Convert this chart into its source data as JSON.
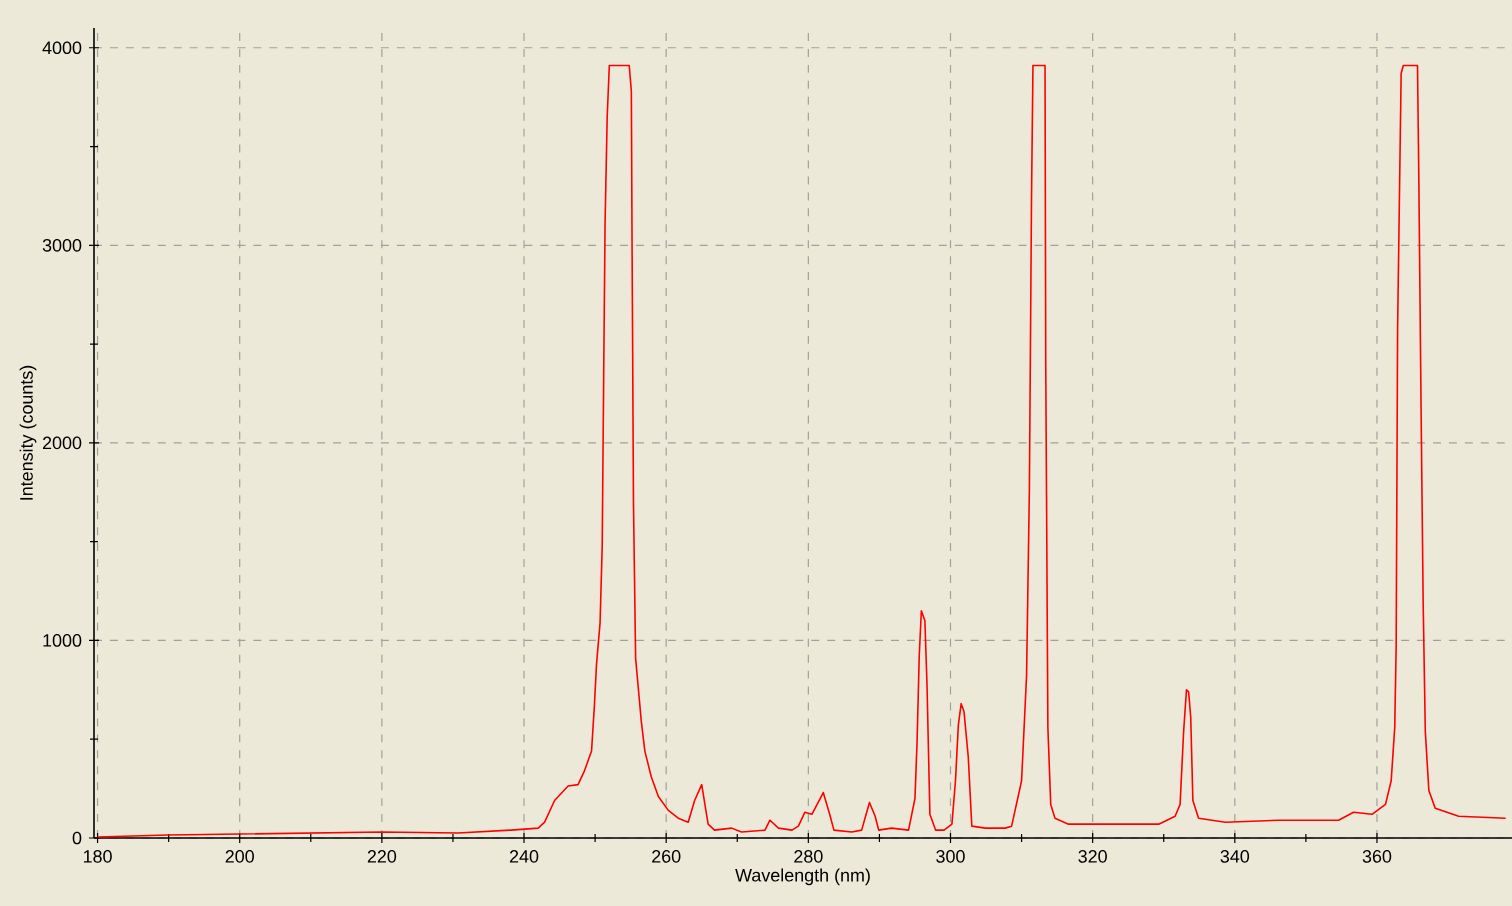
{
  "chart_data": {
    "type": "line",
    "xlabel": "Wavelength (nm)",
    "ylabel": "Intensity (counts)",
    "x": [
      180,
      190,
      200,
      220,
      230.7,
      238.2,
      242.0,
      242.9,
      244.3,
      246.2,
      247.6,
      248.5,
      249.5,
      249.9,
      250.2,
      250.7,
      251.0,
      251.2,
      251.4,
      251.7,
      252.0,
      254.8,
      255.1,
      255.2,
      255.4,
      255.7,
      256.2,
      256.5,
      257.0,
      257.9,
      258.9,
      260.3,
      261.7,
      263.1,
      264.0,
      265.0,
      265.9,
      266.8,
      269.2,
      270.6,
      273.9,
      274.6,
      275.8,
      277.7,
      278.6,
      279.5,
      280.5,
      282.1,
      283.0,
      283.6,
      286.1,
      287.5,
      288.6,
      289.4,
      289.9,
      291.7,
      294.1,
      295.0,
      295.3,
      295.6,
      295.9,
      296.4,
      296.7,
      297.1,
      297.9,
      299.1,
      300.2,
      300.7,
      301.1,
      301.5,
      301.9,
      302.5,
      303.0,
      304.9,
      307.7,
      308.6,
      310.0,
      310.7,
      311.1,
      311.4,
      311.6,
      313.3,
      313.4,
      313.7,
      314.1,
      314.7,
      316.6,
      322.7,
      329.3,
      331.6,
      332.3,
      332.8,
      333.2,
      333.5,
      333.8,
      334.1,
      334.9,
      338.7,
      346.2,
      354.6,
      356.7,
      359.3,
      361.2,
      362.0,
      362.5,
      362.7,
      362.9,
      363.4,
      363.7,
      365.7,
      365.9,
      366.2,
      366.5,
      366.8,
      367.3,
      368.2,
      371.5,
      378.1
    ],
    "values": [
      5,
      15,
      20,
      30,
      25,
      40,
      50,
      80,
      190,
      263,
      270,
      340,
      440,
      670,
      880,
      1090,
      1480,
      2310,
      3110,
      3650,
      3910,
      3910,
      3780,
      3000,
      1690,
      910,
      710,
      590,
      440,
      310,
      210,
      140,
      100,
      80,
      190,
      270,
      70,
      40,
      50,
      30,
      40,
      90,
      50,
      40,
      60,
      130,
      120,
      230,
      120,
      40,
      30,
      40,
      180,
      110,
      40,
      50,
      40,
      200,
      490,
      920,
      1150,
      1100,
      770,
      120,
      40,
      40,
      70,
      290,
      570,
      680,
      640,
      410,
      60,
      50,
      50,
      60,
      290,
      820,
      1770,
      3250,
      3910,
      3910,
      2410,
      560,
      170,
      100,
      70,
      70,
      70,
      110,
      170,
      540,
      750,
      740,
      610,
      190,
      100,
      80,
      90,
      90,
      130,
      120,
      170,
      290,
      560,
      970,
      2570,
      3870,
      3910,
      3910,
      3300,
      2190,
      1190,
      540,
      240,
      150,
      110,
      100
    ],
    "color": "#ff0000",
    "line_style": "solid",
    "xlim": [
      179.5,
      379
    ],
    "ylim": [
      0,
      4100
    ],
    "xticks": [
      180,
      200,
      220,
      240,
      260,
      280,
      300,
      320,
      340,
      360
    ],
    "yticks": [
      0,
      1000,
      2000,
      3000,
      4000
    ],
    "grid": true
  }
}
